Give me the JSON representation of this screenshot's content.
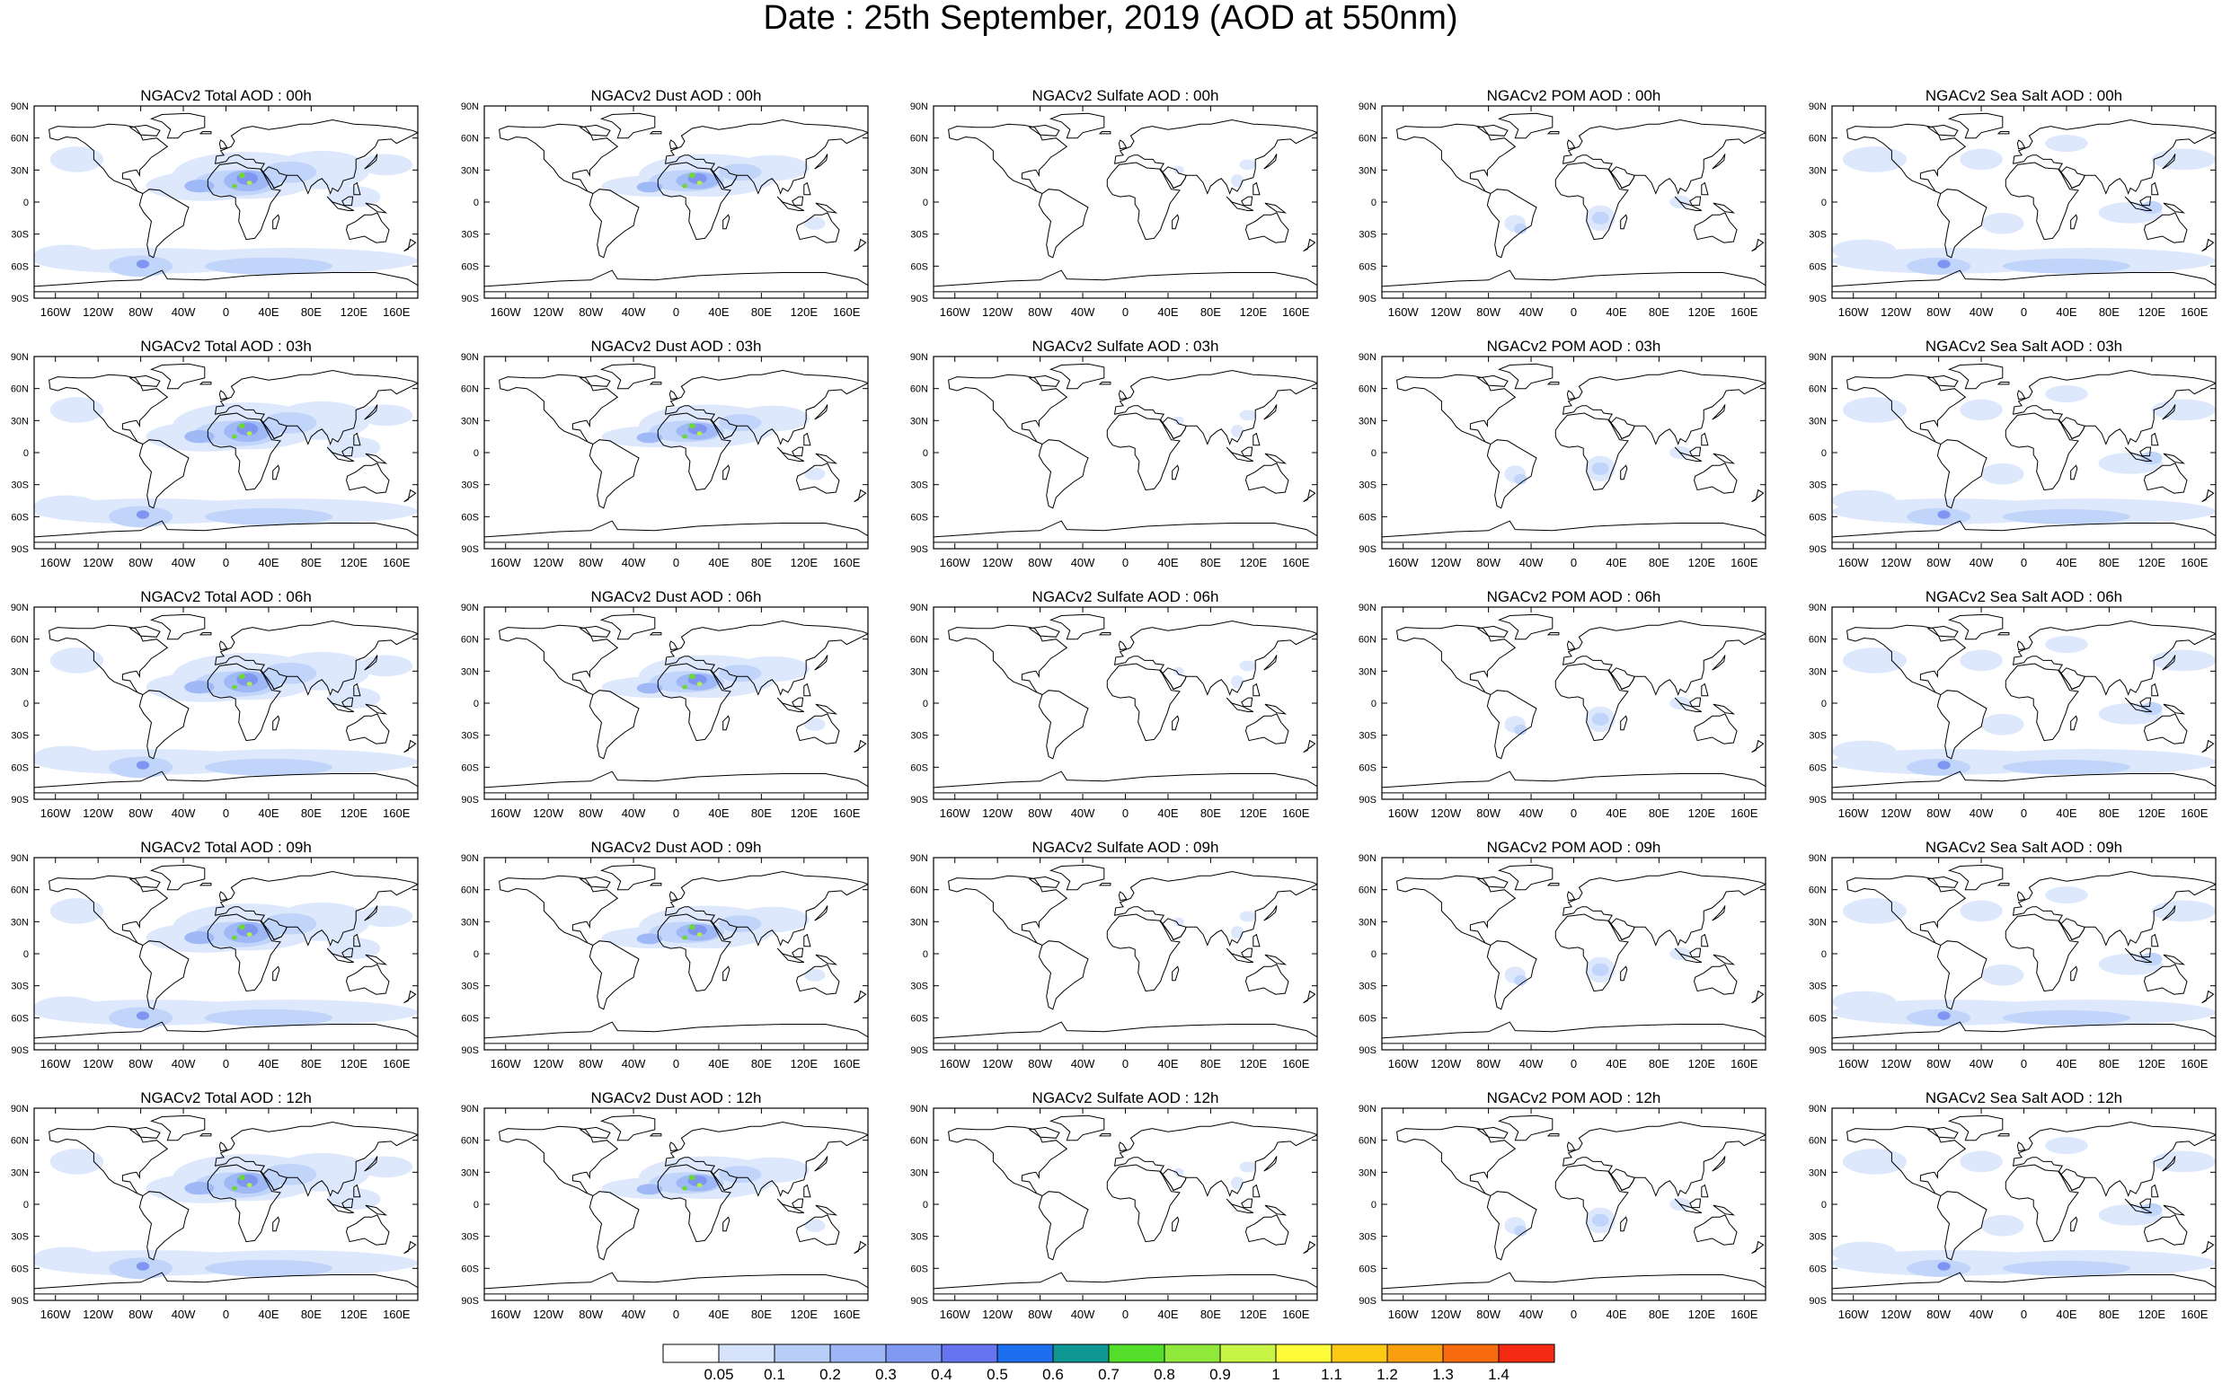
{
  "title": "Date : 25th September, 2019 (AOD at 550nm)",
  "lat_labels": [
    "90N",
    "60N",
    "30N",
    "0",
    "30S",
    "60S",
    "90S"
  ],
  "lon_labels": [
    "160W",
    "120W",
    "80W",
    "40W",
    "0",
    "40E",
    "80E",
    "120E",
    "160E"
  ],
  "rows": [
    "00h",
    "03h",
    "06h",
    "09h",
    "12h"
  ],
  "columns": [
    "Total",
    "Dust",
    "Sulfate",
    "POM",
    "Sea Salt"
  ],
  "panel_titles": [
    [
      "NGACv2 Total AOD : 00h",
      "NGACv2 Dust AOD : 00h",
      "NGACv2 Sulfate AOD : 00h",
      "NGACv2 POM AOD : 00h",
      "NGACv2 Sea Salt AOD : 00h"
    ],
    [
      "NGACv2 Total AOD : 03h",
      "NGACv2 Dust AOD : 03h",
      "NGACv2 Sulfate AOD : 03h",
      "NGACv2 POM AOD : 03h",
      "NGACv2 Sea Salt AOD : 03h"
    ],
    [
      "NGACv2 Total AOD : 06h",
      "NGACv2 Dust AOD : 06h",
      "NGACv2 Sulfate AOD : 06h",
      "NGACv2 POM AOD : 06h",
      "NGACv2 Sea Salt AOD : 06h"
    ],
    [
      "NGACv2 Total AOD : 09h",
      "NGACv2 Dust AOD : 09h",
      "NGACv2 Sulfate AOD : 09h",
      "NGACv2 POM AOD : 09h",
      "NGACv2 Sea Salt  AOD : 09h"
    ],
    [
      "NGACv2 Total AOD : 12h",
      "NGACv2 Dust AOD : 12h",
      "NGACv2 Sulfate AOD : 12h",
      "NGACv2 POM  AOD : 12h",
      "NGACv2 Sea Salt AOD : 12h"
    ]
  ],
  "colorbar": {
    "labels": [
      "0.05",
      "0.1",
      "0.2",
      "0.3",
      "0.4",
      "0.5",
      "0.6",
      "0.7",
      "0.8",
      "0.9",
      "1",
      "1.1",
      "1.2",
      "1.3",
      "1.4"
    ],
    "colors": [
      "#ffffff",
      "#d6e3fb",
      "#b9cdf9",
      "#9cb6f6",
      "#8099f3",
      "#6675ef",
      "#1e6ff0",
      "#0e9793",
      "#53de2a",
      "#8fe83a",
      "#c8f545",
      "#fffd3a",
      "#fcc913",
      "#f99f0e",
      "#f76a0d",
      "#f52a12"
    ]
  }
}
